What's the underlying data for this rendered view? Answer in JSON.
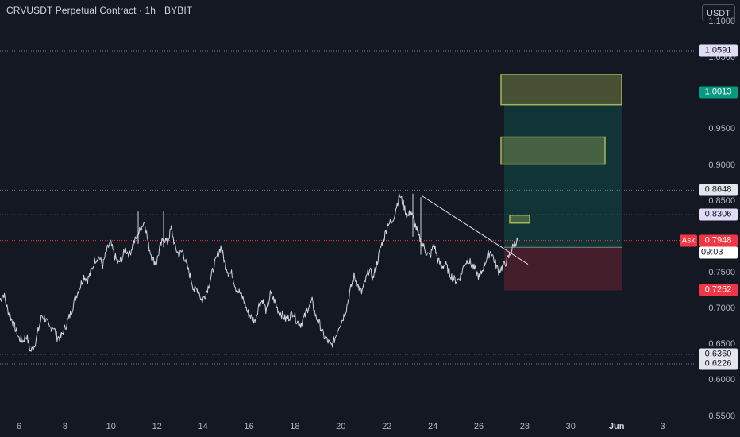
{
  "header": {
    "title": "CRVUSDT Perpetual Contract · 1h · BYBIT",
    "currency": "USDT"
  },
  "price_axis": {
    "ticks": [
      {
        "label": "1.1000",
        "value": 1.1
      },
      {
        "label": "1.0500",
        "value": 1.05
      },
      {
        "label": "0.9500",
        "value": 0.95
      },
      {
        "label": "0.9000",
        "value": 0.9
      },
      {
        "label": "0.8500",
        "value": 0.85
      },
      {
        "label": "0.7500",
        "value": 0.75
      },
      {
        "label": "0.7000",
        "value": 0.7
      },
      {
        "label": "0.6500",
        "value": 0.65
      },
      {
        "label": "0.6000",
        "value": 0.6
      },
      {
        "label": "0.5500",
        "value": 0.55
      }
    ],
    "labels": [
      {
        "text": "1.0591",
        "value": 1.0591,
        "style": "purple"
      },
      {
        "text": "1.0013",
        "value": 1.0013,
        "style": "green"
      },
      {
        "text": "0.8648",
        "value": 0.8648,
        "style": "light"
      },
      {
        "text": "0.8306",
        "value": 0.8306,
        "style": "purple"
      },
      {
        "text": "0.7948",
        "value": 0.7948,
        "style": "red"
      },
      {
        "text": "0.7252",
        "value": 0.7252,
        "style": "red"
      },
      {
        "text": "0.6360",
        "value": 0.636,
        "style": "light"
      },
      {
        "text": "0.6226",
        "value": 0.6226,
        "style": "light"
      }
    ],
    "ask_label": "Ask",
    "countdown": "09:03"
  },
  "time_axis": [
    {
      "label": "6",
      "bold": false
    },
    {
      "label": "8",
      "bold": false
    },
    {
      "label": "10",
      "bold": false
    },
    {
      "label": "12",
      "bold": false
    },
    {
      "label": "14",
      "bold": false
    },
    {
      "label": "16",
      "bold": false
    },
    {
      "label": "18",
      "bold": false
    },
    {
      "label": "20",
      "bold": false
    },
    {
      "label": "22",
      "bold": false
    },
    {
      "label": "24",
      "bold": false
    },
    {
      "label": "26",
      "bold": false
    },
    {
      "label": "28",
      "bold": false
    },
    {
      "label": "30",
      "bold": false
    },
    {
      "label": "Jun",
      "bold": true
    },
    {
      "label": "3",
      "bold": false
    }
  ],
  "horizontal_lines": [
    1.0591,
    0.8648,
    0.8306,
    0.636,
    0.6226
  ],
  "last_price": 0.7948,
  "position": {
    "entry": 0.7852,
    "take_profit": 0.9841,
    "stop_loss": 0.7252
  },
  "zones": [
    {
      "name": "upper-target-zone",
      "top": 1.0259,
      "bottom": 0.9841
    },
    {
      "name": "middle-target-zone",
      "top": 0.9389,
      "bottom": 0.9011
    },
    {
      "name": "small-entry-box",
      "top": 0.83,
      "bottom": 0.819
    }
  ],
  "trendline": {
    "start_price": 0.8572,
    "end_price": 0.7616
  },
  "colors": {
    "background": "#141823",
    "candle": "#d1d4dc",
    "profit": "#089981",
    "loss": "#f23645",
    "zone": "#a5b75a",
    "dotted_line": "#787b86",
    "last_price_line": "#f23645"
  },
  "chart_data": {
    "type": "line",
    "series": [
      {
        "values": [
          0.712,
          0.72,
          0.698,
          0.685,
          0.672,
          0.658,
          0.655,
          0.662,
          0.64,
          0.648,
          0.668,
          0.69,
          0.685,
          0.672,
          0.675,
          0.66,
          0.66,
          0.672,
          0.685,
          0.7,
          0.718,
          0.73,
          0.745,
          0.74,
          0.752,
          0.768,
          0.772,
          0.76,
          0.78,
          0.792,
          0.775,
          0.762,
          0.77,
          0.782,
          0.775,
          0.79,
          0.8,
          0.812,
          0.822,
          0.788,
          0.77,
          0.762,
          0.785,
          0.798,
          0.792,
          0.812,
          0.785,
          0.775,
          0.78,
          0.76,
          0.745,
          0.725,
          0.728,
          0.71,
          0.72,
          0.735,
          0.755,
          0.772,
          0.786,
          0.765,
          0.75,
          0.748,
          0.728,
          0.722,
          0.712,
          0.695,
          0.688,
          0.682,
          0.705,
          0.712,
          0.695,
          0.72,
          0.712,
          0.698,
          0.692,
          0.685,
          0.688,
          0.695,
          0.682,
          0.678,
          0.688,
          0.702,
          0.71,
          0.688,
          0.678,
          0.662,
          0.655,
          0.648,
          0.658,
          0.675,
          0.685,
          0.7,
          0.725,
          0.745,
          0.732,
          0.722,
          0.738,
          0.755,
          0.742,
          0.762,
          0.785,
          0.8,
          0.82,
          0.818,
          0.84,
          0.858,
          0.845,
          0.828,
          0.835,
          0.818,
          0.8,
          0.79,
          0.778,
          0.772,
          0.79,
          0.768,
          0.758,
          0.762,
          0.75,
          0.742,
          0.738,
          0.745,
          0.762,
          0.768,
          0.76,
          0.752,
          0.742,
          0.758,
          0.772,
          0.78,
          0.765,
          0.752,
          0.758,
          0.765,
          0.775,
          0.79,
          0.795
        ]
      }
    ],
    "ylim": [
      0.5465,
      1.1195
    ]
  }
}
